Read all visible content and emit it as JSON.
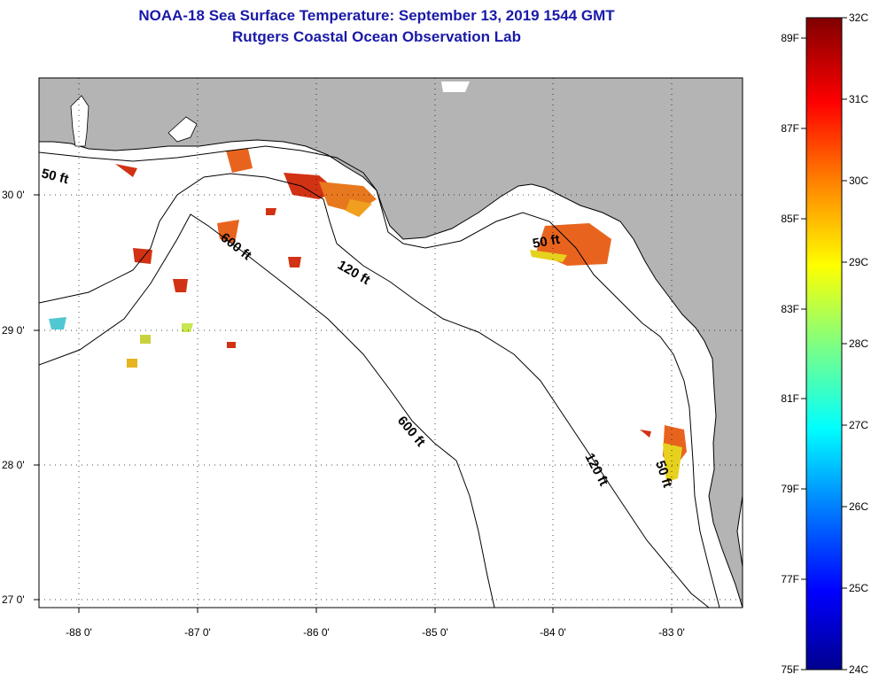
{
  "header": {
    "title": "NOAA-18 Sea Surface Temperature:  September 13, 2019 1544 GMT",
    "subtitle": "Rutgers Coastal Ocean Observation Lab"
  },
  "axes": {
    "lon_ticks": [
      "-88 0'",
      "-87 0'",
      "-86 0'",
      "-85 0'",
      "-84 0'",
      "-83 0'"
    ],
    "lat_ticks": [
      "30 0'",
      "29 0'",
      "28 0'",
      "27 0'"
    ]
  },
  "contours": {
    "c50_west": "50 ft",
    "c600_north": "600 ft",
    "c120_north": "120 ft",
    "c50_bigbend": "50 ft",
    "c600_south": "600 ft",
    "c120_south": "120 ft",
    "c50_south": "50 ft"
  },
  "colorbar": {
    "fahrenheit": [
      "89F",
      "87F",
      "85F",
      "83F",
      "81F",
      "79F",
      "77F",
      "75F"
    ],
    "celsius": [
      "32C",
      "31C",
      "30C",
      "29C",
      "28C",
      "27C",
      "26C",
      "25C",
      "24C"
    ]
  },
  "colors": {
    "land": "#b4b4b4",
    "water_no_data": "#ffffff",
    "title": "#1a1aa8",
    "warm_patch": "#e8641e",
    "hot_patch": "#d23214",
    "yellow_patch": "#e6d21e"
  }
}
